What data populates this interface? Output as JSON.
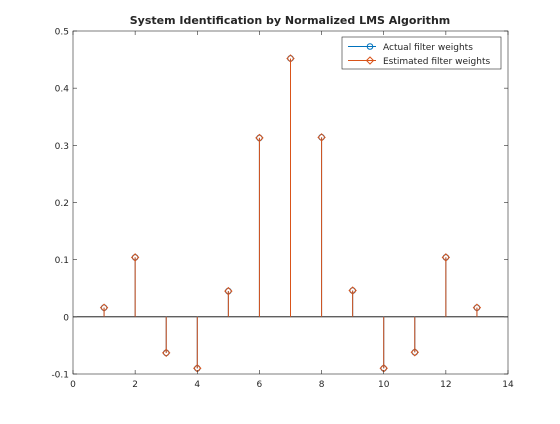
{
  "chart_data": {
    "type": "stem",
    "title": "System Identification by Normalized LMS Algorithm",
    "xlabel": "",
    "ylabel": "",
    "xlim": [
      0,
      14
    ],
    "ylim": [
      -0.1,
      0.5
    ],
    "xticks": [
      0,
      2,
      4,
      6,
      8,
      10,
      12,
      14
    ],
    "xtick_labels": [
      "0",
      "2",
      "4",
      "6",
      "8",
      "10",
      "12",
      "14"
    ],
    "yticks": [
      -0.1,
      0,
      0.1,
      0.2,
      0.3,
      0.4,
      0.5
    ],
    "ytick_labels": [
      "-0.1",
      "0",
      "0.1",
      "0.2",
      "0.3",
      "0.4",
      "0.5"
    ],
    "grid": false,
    "legend_position": "top-right",
    "x": [
      1,
      2,
      3,
      4,
      5,
      6,
      7,
      8,
      9,
      10,
      11,
      12,
      13
    ],
    "series": [
      {
        "name": "Actual filter weights",
        "color": "#0072BD",
        "marker": "circle",
        "values": [
          0.016,
          0.104,
          -0.063,
          -0.09,
          0.045,
          0.313,
          0.452,
          0.314,
          0.046,
          -0.09,
          -0.062,
          0.104,
          0.016
        ]
      },
      {
        "name": "Estimated filter weights",
        "color": "#D95319",
        "marker": "diamond",
        "values": [
          0.016,
          0.104,
          -0.063,
          -0.09,
          0.045,
          0.313,
          0.452,
          0.314,
          0.046,
          -0.09,
          -0.062,
          0.104,
          0.016
        ]
      }
    ]
  }
}
